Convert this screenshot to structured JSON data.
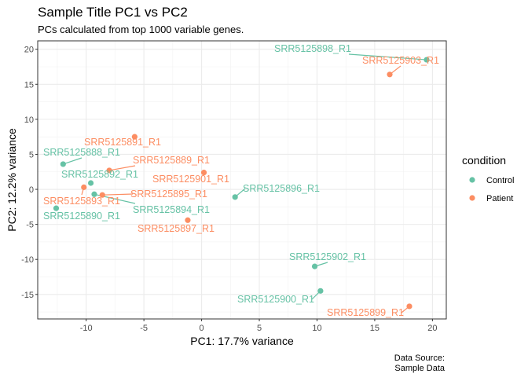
{
  "chart_data": {
    "type": "scatter",
    "title": "Sample Title PC1 vs PC2",
    "subtitle": "PCs calculated from top 1000 variable genes.",
    "xlabel": "PC1: 17.7% variance",
    "ylabel": "PC2: 12.2% variance",
    "xlim": [
      -14.2,
      21.2
    ],
    "ylim": [
      -18.5,
      21.2
    ],
    "x_ticks": [
      -10,
      -5,
      0,
      5,
      10,
      15,
      20
    ],
    "y_ticks": [
      -15,
      -10,
      -5,
      0,
      5,
      10,
      15,
      20
    ],
    "x_tick_labels": [
      "-10",
      "-5",
      "0",
      "5",
      "10",
      "15",
      "20"
    ],
    "y_tick_labels": [
      "-15",
      "-10",
      "-5",
      "0",
      "5",
      "10",
      "15",
      "20"
    ],
    "grid": true,
    "legend": {
      "title": "condition",
      "position": "right",
      "entries": [
        {
          "name": "Control",
          "color": "#66c2a5"
        },
        {
          "name": "Patient",
          "color": "#fc8d62"
        }
      ]
    },
    "caption": [
      "Data Source:",
      "Sample Data"
    ],
    "series": [
      {
        "name": "Control",
        "color": "#66c2a5",
        "points": [
          {
            "label": "SRR5125898_R1",
            "x": 19.5,
            "y": 18.5
          },
          {
            "label": "SRR5125888_R1",
            "x": -12.0,
            "y": 3.6
          },
          {
            "label": "SRR5125892_R1",
            "x": -9.6,
            "y": 0.9
          },
          {
            "label": "SRR5125894_R1",
            "x": -9.3,
            "y": -0.7
          },
          {
            "label": "SRR5125890_R1",
            "x": -12.6,
            "y": -2.7
          },
          {
            "label": "SRR5125896_R1",
            "x": 2.9,
            "y": -1.1
          },
          {
            "label": "SRR5125902_R1",
            "x": 9.8,
            "y": -11.0
          },
          {
            "label": "SRR5125900_R1",
            "x": 10.3,
            "y": -14.5
          }
        ]
      },
      {
        "name": "Patient",
        "color": "#fc8d62",
        "points": [
          {
            "label": "SRR5125903_R1",
            "x": 16.3,
            "y": 16.4
          },
          {
            "label": "SRR5125891_R1",
            "x": -5.8,
            "y": 7.5
          },
          {
            "label": "SRR5125889_R1",
            "x": -8.0,
            "y": 2.7
          },
          {
            "label": "SRR5125901_R1",
            "x": 0.2,
            "y": 2.4
          },
          {
            "label": "SRR5125893_R1",
            "x": -10.2,
            "y": 0.3
          },
          {
            "label": "SRR5125895_R1",
            "x": -8.6,
            "y": -0.8
          },
          {
            "label": "SRR5125897_R1",
            "x": -1.2,
            "y": -4.4
          },
          {
            "label": "SRR5125899_R1",
            "x": 18.0,
            "y": -16.7
          }
        ]
      }
    ]
  }
}
